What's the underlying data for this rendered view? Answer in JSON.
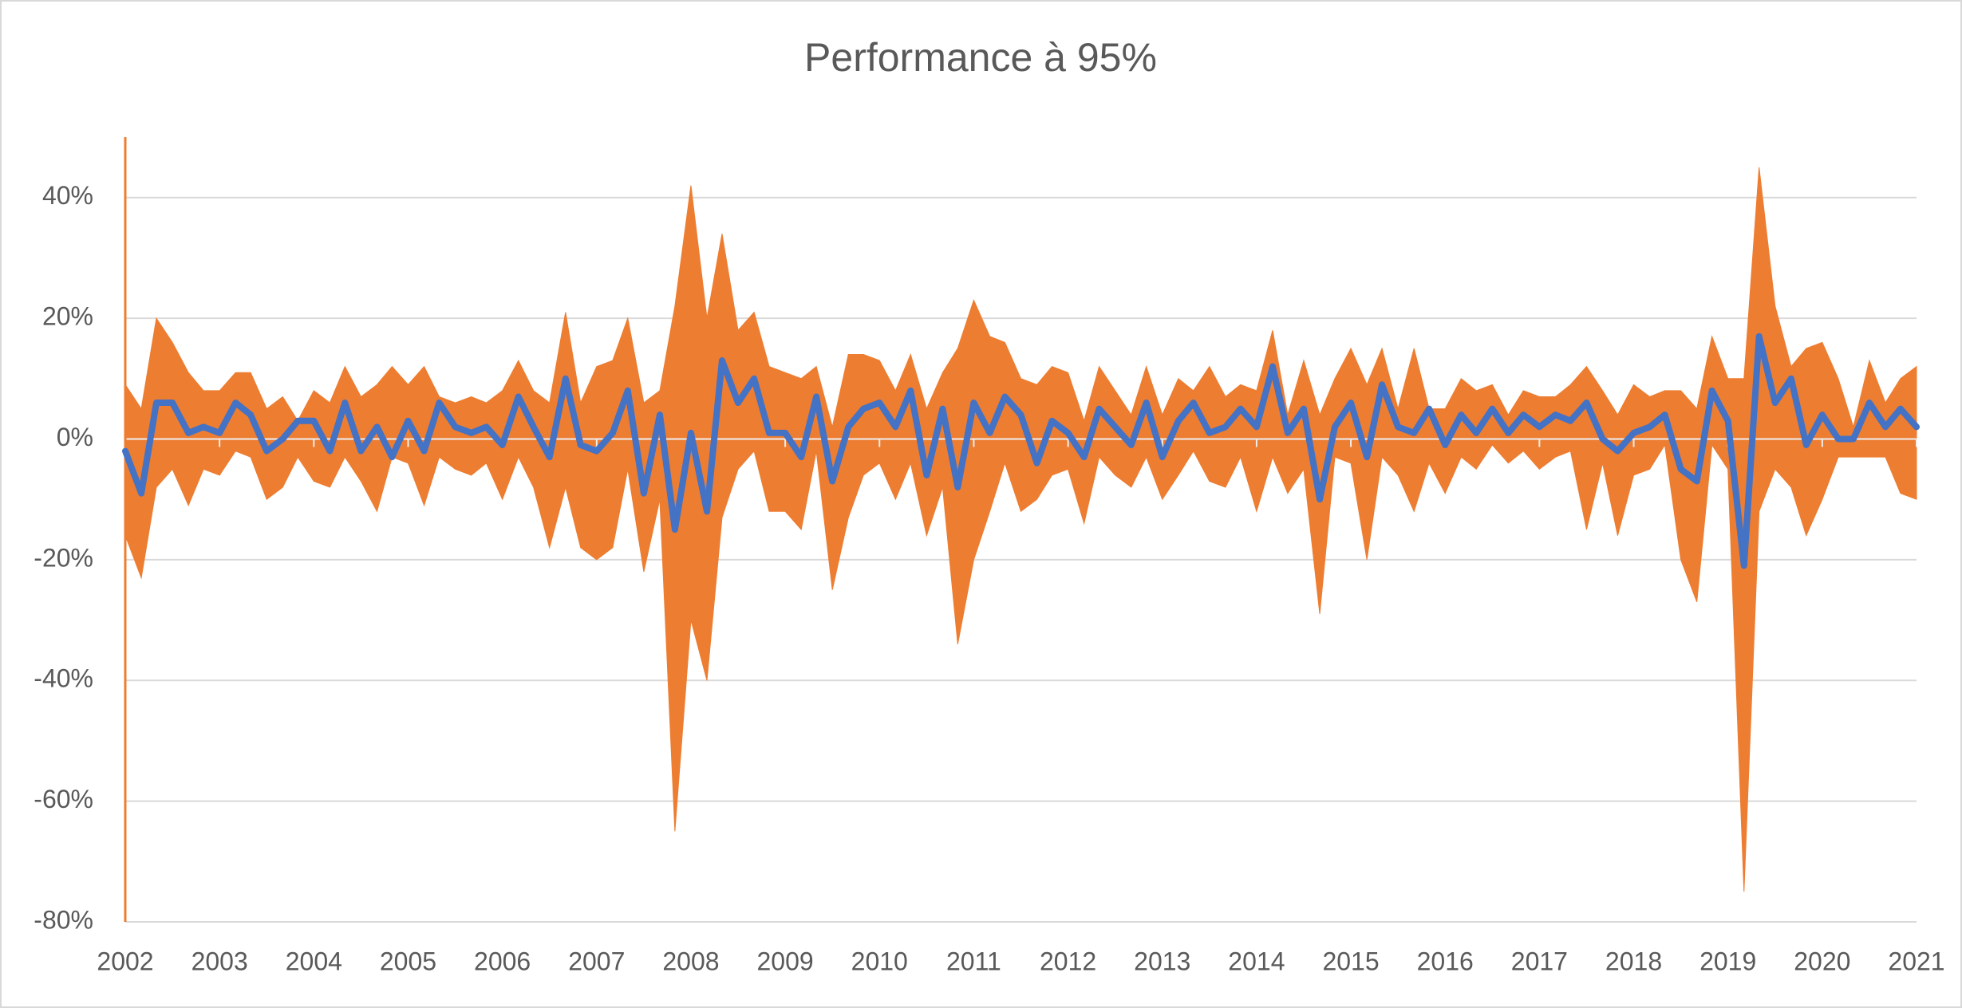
{
  "chart_data": {
    "type": "band",
    "title": "Performance à 95%",
    "x": [
      2002,
      2002.17,
      2002.33,
      2002.5,
      2002.67,
      2002.83,
      2003,
      2003.17,
      2003.33,
      2003.5,
      2003.67,
      2003.83,
      2004,
      2004.17,
      2004.33,
      2004.5,
      2004.67,
      2004.83,
      2005,
      2005.17,
      2005.33,
      2005.5,
      2005.67,
      2005.83,
      2006,
      2006.17,
      2006.33,
      2006.5,
      2006.67,
      2006.83,
      2007,
      2007.17,
      2007.33,
      2007.5,
      2007.67,
      2007.83,
      2008,
      2008.17,
      2008.33,
      2008.5,
      2008.67,
      2008.83,
      2009,
      2009.17,
      2009.33,
      2009.5,
      2009.67,
      2009.83,
      2010,
      2010.17,
      2010.33,
      2010.5,
      2010.67,
      2010.83,
      2011,
      2011.17,
      2011.33,
      2011.5,
      2011.67,
      2011.83,
      2012,
      2012.17,
      2012.33,
      2012.5,
      2012.67,
      2012.83,
      2013,
      2013.17,
      2013.33,
      2013.5,
      2013.67,
      2013.83,
      2014,
      2014.17,
      2014.33,
      2014.5,
      2014.67,
      2014.83,
      2015,
      2015.17,
      2015.33,
      2015.5,
      2015.67,
      2015.83,
      2016,
      2016.17,
      2016.33,
      2016.5,
      2016.67,
      2016.83,
      2017,
      2017.17,
      2017.33,
      2017.5,
      2017.67,
      2017.83,
      2018,
      2018.17,
      2018.33,
      2018.5,
      2018.67,
      2018.83,
      2019,
      2019.17,
      2019.33,
      2019.5,
      2019.67,
      2019.83,
      2020,
      2020.17,
      2020.33,
      2020.5,
      2020.67,
      2020.83,
      2021
    ],
    "upper": {
      "color": "#ed7d31",
      "values": [
        9,
        5,
        20,
        16,
        11,
        8,
        8,
        11,
        11,
        5,
        7,
        3,
        8,
        6,
        12,
        7,
        9,
        12,
        9,
        12,
        7,
        6,
        7,
        6,
        8,
        13,
        8,
        6,
        21,
        6,
        12,
        13,
        20,
        6,
        8,
        22,
        42,
        20,
        34,
        18,
        21,
        12,
        11,
        10,
        12,
        2,
        14,
        14,
        13,
        8,
        14,
        5,
        11,
        15,
        23,
        17,
        16,
        10,
        9,
        12,
        11,
        3,
        12,
        8,
        4,
        12,
        4,
        10,
        8,
        12,
        7,
        9,
        8,
        18,
        4,
        13,
        4,
        10,
        15,
        9,
        15,
        5,
        15,
        5,
        5,
        10,
        8,
        9,
        4,
        8,
        7,
        7,
        9,
        12,
        8,
        4,
        9,
        7,
        8,
        8,
        5,
        17,
        10,
        10,
        45,
        22,
        12,
        15,
        16,
        10,
        2,
        13,
        6,
        10,
        12
      ]
    },
    "lower": {
      "color": "#ed7d31",
      "values": [
        -16,
        -23,
        -8,
        -5,
        -11,
        -5,
        -6,
        -2,
        -3,
        -10,
        -8,
        -3,
        -7,
        -8,
        -3,
        -7,
        -12,
        -3,
        -4,
        -11,
        -3,
        -5,
        -6,
        -4,
        -10,
        -3,
        -8,
        -18,
        -8,
        -18,
        -20,
        -18,
        -5,
        -22,
        -10,
        -65,
        -30,
        -40,
        -13,
        -5,
        -2,
        -12,
        -12,
        -15,
        -2,
        -25,
        -13,
        -6,
        -4,
        -10,
        -4,
        -16,
        -8,
        -34,
        -20,
        -12,
        -4,
        -12,
        -10,
        -6,
        -5,
        -14,
        -3,
        -6,
        -8,
        -3,
        -10,
        -6,
        -2,
        -7,
        -8,
        -3,
        -12,
        -3,
        -9,
        -5,
        -29,
        -3,
        -4,
        -20,
        -3,
        -6,
        -12,
        -4,
        -9,
        -3,
        -5,
        -1,
        -4,
        -2,
        -5,
        -3,
        -2,
        -15,
        -4,
        -16,
        -6,
        -5,
        -1,
        -20,
        -27,
        -1,
        -5,
        -75,
        -12,
        -5,
        -8,
        -16,
        -10,
        -3,
        -3,
        -3,
        -3,
        -9,
        -10
      ]
    },
    "line": {
      "color": "#4472c4",
      "values": [
        -2,
        -9,
        6,
        6,
        1,
        2,
        1,
        6,
        4,
        -2,
        0,
        3,
        3,
        -2,
        6,
        -2,
        2,
        -3,
        3,
        -2,
        6,
        2,
        1,
        2,
        -1,
        7,
        2,
        -3,
        10,
        -1,
        -2,
        1,
        8,
        -9,
        4,
        -15,
        1,
        -12,
        13,
        6,
        10,
        1,
        1,
        -3,
        7,
        -7,
        2,
        5,
        6,
        2,
        8,
        -6,
        5,
        -8,
        6,
        1,
        7,
        4,
        -4,
        3,
        1,
        -3,
        5,
        2,
        -1,
        6,
        -3,
        3,
        6,
        1,
        2,
        5,
        2,
        12,
        1,
        5,
        -10,
        2,
        6,
        -3,
        9,
        2,
        1,
        5,
        -1,
        4,
        1,
        5,
        1,
        4,
        2,
        4,
        3,
        6,
        0,
        -2,
        1,
        2,
        4,
        -5,
        -7,
        8,
        3,
        -21,
        17,
        6,
        10,
        -1,
        4,
        0,
        0,
        6,
        2,
        5,
        2
      ]
    },
    "xlim": [
      2002,
      2021
    ],
    "xticks": [
      2002,
      2003,
      2004,
      2005,
      2006,
      2007,
      2008,
      2009,
      2010,
      2011,
      2012,
      2013,
      2014,
      2015,
      2016,
      2017,
      2018,
      2019,
      2020,
      2021
    ],
    "ylim": [
      -80,
      50
    ],
    "yticks": [
      {
        "value": -80,
        "label": "-80%"
      },
      {
        "value": -60,
        "label": "-60%"
      },
      {
        "value": -40,
        "label": "-40%"
      },
      {
        "value": -20,
        "label": "-20%"
      },
      {
        "value": 0,
        "label": "0%"
      },
      {
        "value": 20,
        "label": "20%"
      },
      {
        "value": 40,
        "label": "40%"
      }
    ],
    "grid": true
  }
}
